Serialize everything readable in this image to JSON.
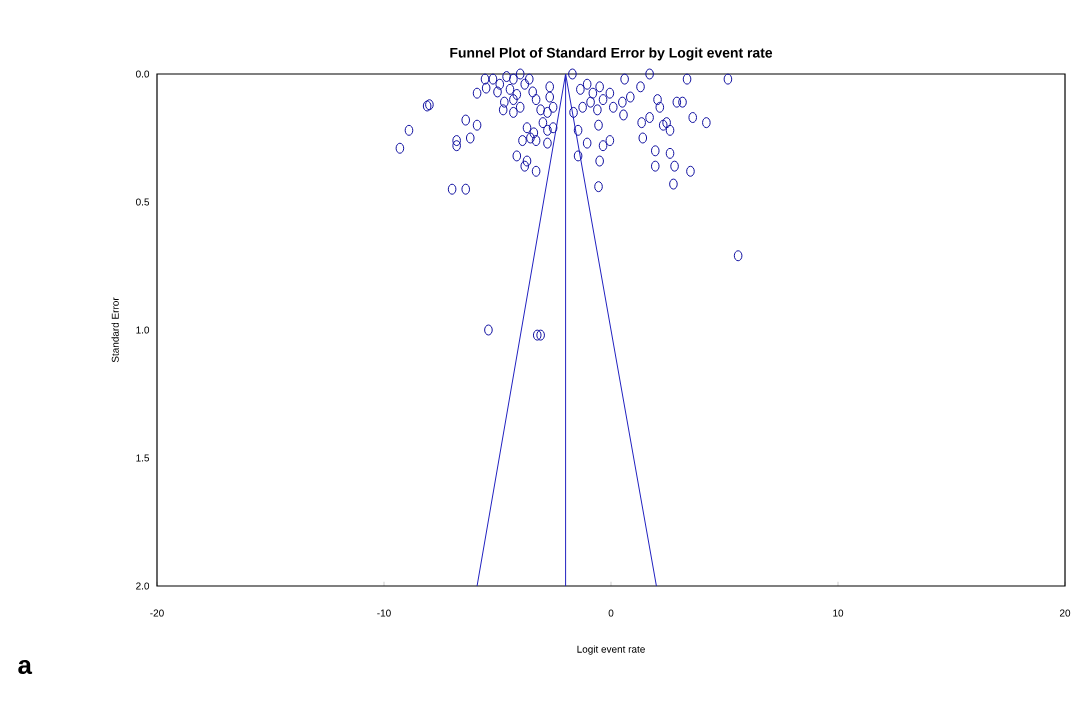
{
  "chart_data": {
    "type": "scatter",
    "title": "Funnel Plot of Standard Error by Logit event rate",
    "xlabel": "Logit event rate",
    "ylabel": "Standard Error",
    "annotations": [
      "a"
    ],
    "xlim": [
      -20,
      20
    ],
    "ylim": [
      2.0,
      0.0
    ],
    "xticks": [
      -20,
      -10,
      0,
      10,
      20
    ],
    "yticks": [
      {
        "value": 0,
        "label": "0.0"
      },
      {
        "value": 0.5,
        "label": "0.5"
      },
      {
        "value": 1.0,
        "label": "1.0"
      },
      {
        "value": 1.5,
        "label": "1.5"
      },
      {
        "value": 2.0,
        "label": "2.0"
      }
    ],
    "marker": "circle",
    "ref_lines": [
      {
        "axis": "x",
        "value": -2.0,
        "color": "#2020c0"
      }
    ],
    "series": [
      {
        "color": "#1010a0",
        "x": [
          -9.3,
          -8.9,
          -8.1,
          -8.0,
          -7.0,
          -6.4,
          -6.4,
          -5.9,
          -6.8,
          -6.8,
          -6.2,
          -5.9,
          -5.55,
          -5.2,
          -4.9,
          -4.6,
          -4.3,
          -4.0,
          -3.8,
          -3.6,
          -5.5,
          -5.0,
          -4.45,
          -4.15,
          -3.45,
          -4.7,
          -4.3,
          -4.0,
          -4.75,
          -4.3,
          -2.7,
          -2.7,
          -3.3,
          -3.1,
          -2.8,
          -2.55,
          -3.0,
          -3.7,
          -3.4,
          -2.8,
          -2.55,
          -3.9,
          -3.3,
          -2.8,
          -3.55,
          -4.15,
          -3.7,
          -3.8,
          -3.3,
          -1.7,
          -1.35,
          -1.05,
          -0.8,
          -0.5,
          -0.9,
          -0.35,
          -0.05,
          -1.25,
          -0.6,
          0.1,
          0.6,
          0.5,
          0.85,
          1.3,
          1.7,
          0.55,
          -0.55,
          -1.45,
          -1.05,
          -0.35,
          -0.05,
          -0.5,
          -1.45,
          -0.55,
          1.35,
          1.7,
          1.4,
          2.05,
          2.15,
          2.45,
          2.6,
          2.3,
          2.9,
          3.15,
          1.95,
          2.6,
          1.95,
          2.8,
          3.5,
          2.75,
          3.35,
          5.15,
          3.6,
          4.2,
          -1.65,
          5.6,
          -5.4,
          -3.25,
          -3.1
        ],
        "values": [
          0.29,
          0.22,
          0.125,
          0.12,
          0.45,
          0.45,
          0.18,
          0.2,
          0.26,
          0.28,
          0.25,
          0.075,
          0.02,
          0.02,
          0.04,
          0.01,
          0.02,
          0.0,
          0.04,
          0.02,
          0.055,
          0.07,
          0.06,
          0.08,
          0.07,
          0.11,
          0.1,
          0.13,
          0.14,
          0.15,
          0.05,
          0.09,
          0.1,
          0.14,
          0.15,
          0.13,
          0.19,
          0.21,
          0.23,
          0.22,
          0.21,
          0.26,
          0.26,
          0.27,
          0.25,
          0.32,
          0.34,
          0.36,
          0.38,
          0.0,
          0.06,
          0.04,
          0.075,
          0.05,
          0.11,
          0.1,
          0.075,
          0.13,
          0.14,
          0.13,
          0.02,
          0.11,
          0.09,
          0.05,
          0.0,
          0.16,
          0.2,
          0.22,
          0.27,
          0.28,
          0.26,
          0.34,
          0.32,
          0.44,
          0.19,
          0.17,
          0.25,
          0.1,
          0.13,
          0.19,
          0.22,
          0.2,
          0.11,
          0.11,
          0.3,
          0.31,
          0.36,
          0.36,
          0.38,
          0.43,
          0.02,
          0.02,
          0.17,
          0.19,
          0.15,
          0.71,
          1.0,
          1.02,
          1.02
        ]
      },
      {
        "type": "line",
        "color": "#2020c0",
        "marker": "none",
        "x": [
          -5.9,
          -2.0,
          2.0
        ],
        "values": [
          2.0,
          0.0,
          2.0
        ]
      }
    ]
  }
}
